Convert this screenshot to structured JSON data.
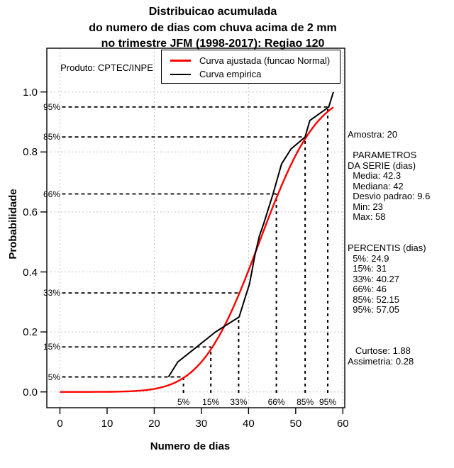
{
  "title": {
    "line1": "Distribuicao acumulada",
    "line2": "do numero de dias com chuva acima de 2 mm",
    "line3": "no trimestre JFM (1998-2017): Regiao 120"
  },
  "watermark": "Produto: CPTEC/INPE",
  "axes": {
    "x_label": "Numero de dias",
    "y_label": "Probabilidade",
    "x_tick_labels": [
      "0",
      "10",
      "20",
      "30",
      "40",
      "50",
      "60"
    ],
    "x_tick_values": [
      0,
      10,
      20,
      30,
      40,
      50,
      60
    ],
    "y_tick_labels": [
      "0.0",
      "0.2",
      "0.4",
      "0.6",
      "0.8",
      "1.0"
    ],
    "y_tick_values": [
      0,
      0.2,
      0.4,
      0.6,
      0.8,
      1.0
    ],
    "grid_x_values": [
      0,
      20,
      40,
      60
    ],
    "grid_y_values": [
      0,
      0.2,
      0.4,
      0.6,
      0.8,
      1.0
    ]
  },
  "legend": {
    "entries": [
      {
        "label": "Curva ajustada (funcao Normal)",
        "color": "#ff0000",
        "thickness": 3
      },
      {
        "label": "Curva empirica",
        "color": "#000000",
        "thickness": 2.5
      }
    ]
  },
  "side_panel": {
    "lines": [
      "Amostra: 20",
      "",
      "  PARAMETROS",
      "DA SERIE (dias)",
      "  Media: 42.3",
      "  Mediana: 42",
      "  Desvio padrao: 9.6",
      "  Min: 23",
      "  Max: 58",
      "",
      "",
      "PERCENTIS (dias)",
      "  5%: 24.9",
      "  15%: 31",
      "  33%: 40.27",
      "  66%: 46",
      "  85%: 52.15",
      "  95%: 57.05",
      "",
      "",
      "",
      "   Curtose: 1.88",
      "Assimetria: 0.28"
    ]
  },
  "chart_data": {
    "type": "line",
    "title": "Distribuicao acumulada do numero de dias com chuva acima de 2 mm no trimestre JFM (1998-2017): Regiao 120",
    "xlabel": "Numero de dias",
    "ylabel": "Probabilidade",
    "xlim": [
      0,
      60
    ],
    "ylim": [
      0,
      1
    ],
    "grid": true,
    "legend_position": "top",
    "series": [
      {
        "name": "Curva ajustada (funcao Normal)",
        "color": "#ff0000",
        "model": "normal_cdf",
        "mean": 42.3,
        "sd": 9.6,
        "x_range": [
          0,
          58
        ]
      },
      {
        "name": "Curva empirica",
        "color": "#000000",
        "points": [
          [
            23,
            0.05
          ],
          [
            25,
            0.1
          ],
          [
            29,
            0.15
          ],
          [
            33,
            0.2
          ],
          [
            38,
            0.25
          ],
          [
            39.2,
            0.31
          ],
          [
            40.2,
            0.36
          ],
          [
            41.4,
            0.46
          ],
          [
            42.3,
            0.52
          ],
          [
            43.2,
            0.56
          ],
          [
            45.2,
            0.66
          ],
          [
            46.1,
            0.71
          ],
          [
            47,
            0.76
          ],
          [
            49,
            0.81
          ],
          [
            52,
            0.85
          ],
          [
            53,
            0.905
          ],
          [
            57,
            0.95
          ],
          [
            58,
            1.0
          ]
        ]
      }
    ],
    "percentile_markers": [
      {
        "label": "5%",
        "p": 0.05,
        "x": 26.2
      },
      {
        "label": "15%",
        "p": 0.15,
        "x": 32.0
      },
      {
        "label": "33%",
        "p": 0.33,
        "x": 37.9
      },
      {
        "label": "66%",
        "p": 0.66,
        "x": 45.9
      },
      {
        "label": "85%",
        "p": 0.85,
        "x": 52.0
      },
      {
        "label": "95%",
        "p": 0.95,
        "x": 56.8
      }
    ],
    "stats": {
      "amostra": 20,
      "media": 42.3,
      "mediana": 42,
      "desvio_padrao": 9.6,
      "min": 23,
      "max": 58,
      "percentis": {
        "5%": 24.9,
        "15%": 31,
        "33%": 40.27,
        "66%": 46,
        "85%": 52.15,
        "95%": 57.05
      },
      "curtose": 1.88,
      "assimetria": 0.28
    },
    "colors": {
      "grid": "#c0c0c0",
      "marker_lines": "#000000",
      "box": "#000000"
    }
  }
}
